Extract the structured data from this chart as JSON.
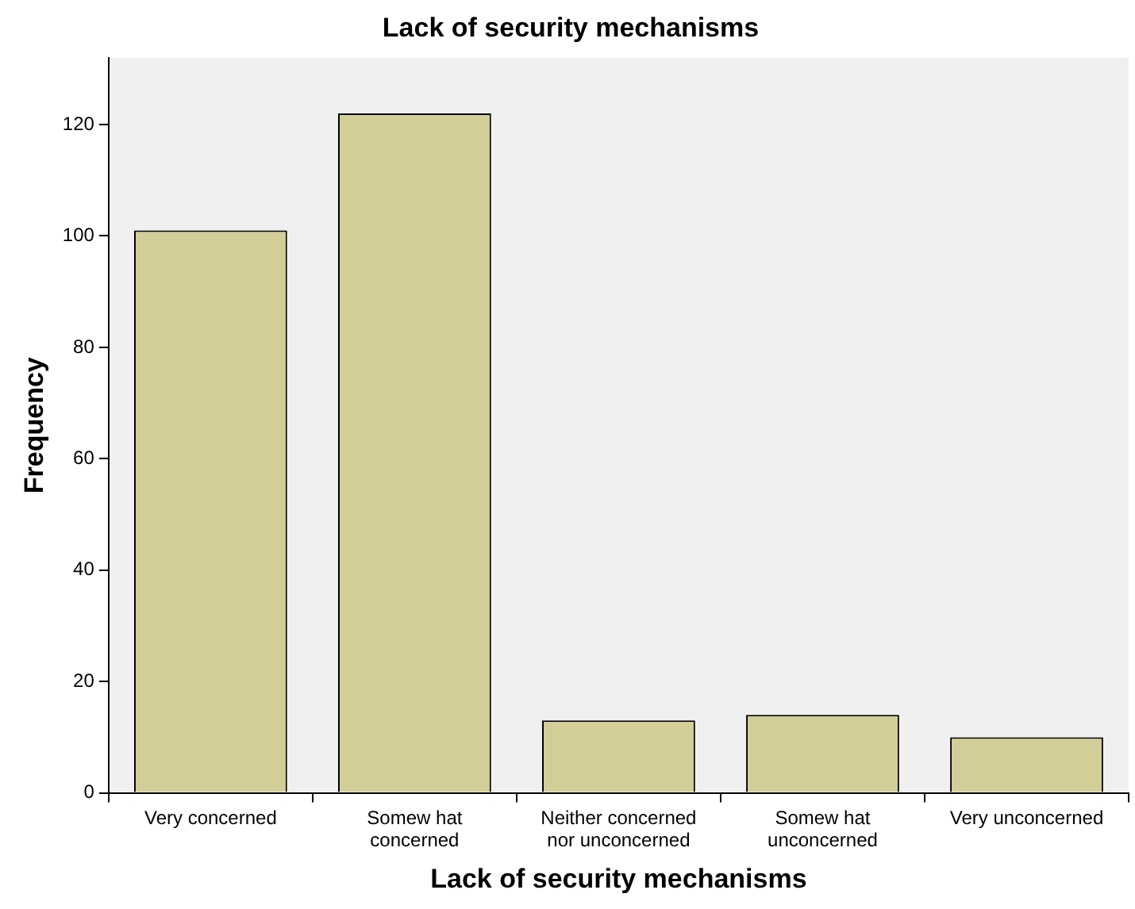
{
  "chart_data": {
    "type": "bar",
    "title": "Lack of security mechanisms",
    "xlabel": "Lack of security mechanisms",
    "ylabel": "Frequency",
    "categories": [
      "Very concerned",
      "Somew hat\nconcerned",
      "Neither concerned\nnor unconcerned",
      "Somew hat\nunconcerned",
      "Very unconcerned"
    ],
    "values": [
      101,
      122,
      13,
      14,
      10
    ],
    "color": "#d3ce97",
    "ylim": [
      0,
      132
    ],
    "yticks": [
      0,
      20,
      40,
      60,
      80,
      100,
      120
    ],
    "grid": false
  }
}
